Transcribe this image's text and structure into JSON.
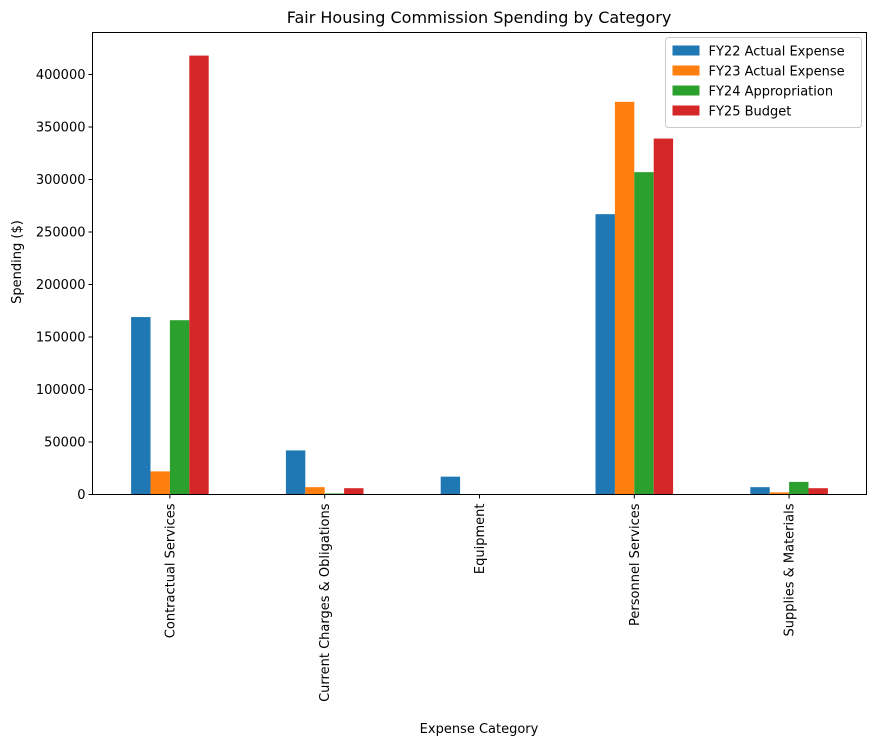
{
  "chart_data": {
    "type": "bar",
    "title": "Fair Housing Commission Spending by Category",
    "xlabel": "Expense Category",
    "ylabel": "Spending ($)",
    "categories": [
      "Contractual Services",
      "Current Charges & Obligations",
      "Equipment",
      "Personnel Services",
      "Supplies & Materials"
    ],
    "series": [
      {
        "name": "FY22 Actual Expense",
        "color": "#1f77b4",
        "values": [
          169000,
          42000,
          17000,
          267000,
          7000
        ]
      },
      {
        "name": "FY23 Actual Expense",
        "color": "#ff7f0e",
        "values": [
          22000,
          7000,
          0,
          374000,
          2000
        ]
      },
      {
        "name": "FY24 Appropriation",
        "color": "#2ca02c",
        "values": [
          166000,
          1000,
          0,
          307000,
          12000
        ]
      },
      {
        "name": "FY25 Budget",
        "color": "#d62728",
        "values": [
          418000,
          6000,
          0,
          339000,
          6000
        ]
      }
    ],
    "ylim": [
      0,
      440000
    ],
    "yticks": [
      0,
      50000,
      100000,
      150000,
      200000,
      250000,
      300000,
      350000,
      400000
    ],
    "grid": false,
    "legend": "top-right"
  }
}
